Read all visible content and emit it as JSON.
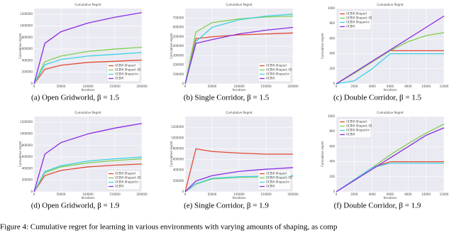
{
  "chart_data": [
    {
      "type": "line",
      "title": "Cumulative Regret",
      "caption": "(a) Open Gridworld, β = 1.5",
      "xlabel": "Iterations",
      "ylabel": "Cumulative regret",
      "legend": "lower right",
      "x": [
        0,
        20000,
        50000,
        100000,
        150000,
        200000
      ],
      "xlim": [
        0,
        200000
      ],
      "xticks": [
        0,
        50000,
        100000,
        150000,
        200000
      ],
      "ylim": [
        0,
        1300000
      ],
      "yticks": [
        0,
        200000,
        400000,
        600000,
        800000,
        1000000,
        1200000
      ],
      "series": [
        {
          "name": "UCBVI-Shaped",
          "color": "#e24a33",
          "values": [
            0,
            250000,
            320000,
            370000,
            390000,
            410000
          ]
        },
        {
          "name": "UCBVI-Shaped-.05",
          "color": "#7fcf4f",
          "values": [
            0,
            380000,
            480000,
            560000,
            600000,
            630000
          ]
        },
        {
          "name": "UCBVI-Shaped-π",
          "color": "#3ed3e0",
          "values": [
            0,
            330000,
            420000,
            480000,
            510000,
            540000
          ]
        },
        {
          "name": "UCBVI",
          "color": "#8a2be2",
          "values": [
            0,
            700000,
            900000,
            1050000,
            1150000,
            1230000
          ]
        }
      ]
    },
    {
      "type": "line",
      "title": "Cumulative Regret",
      "caption": "(b) Single Corridor, β = 1.5",
      "xlabel": "Iterations",
      "ylabel": "Cumulative regret",
      "legend": "lower right",
      "x": [
        0,
        20000,
        50000,
        100000,
        150000,
        200000
      ],
      "xlim": [
        0,
        200000
      ],
      "xticks": [
        0,
        50000,
        100000,
        150000,
        200000
      ],
      "ylim": [
        0,
        800000
      ],
      "yticks": [
        0,
        100000,
        200000,
        300000,
        400000,
        500000,
        600000,
        700000
      ],
      "series": [
        {
          "name": "UCBVI-Shaped",
          "color": "#e24a33",
          "values": [
            0,
            480000,
            500000,
            520000,
            530000,
            540000
          ]
        },
        {
          "name": "UCBVI-Shaped-.05",
          "color": "#7fcf4f",
          "values": [
            0,
            550000,
            650000,
            690000,
            710000,
            720000
          ]
        },
        {
          "name": "UCBVI-Shaped-π",
          "color": "#3ed3e0",
          "values": [
            0,
            450000,
            600000,
            680000,
            720000,
            740000
          ]
        },
        {
          "name": "UCBVI",
          "color": "#8a2be2",
          "values": [
            0,
            430000,
            470000,
            530000,
            570000,
            600000
          ]
        }
      ]
    },
    {
      "type": "line",
      "title": "Cumulative Regret",
      "caption": "(c) Double Corridor, β = 1.5",
      "xlabel": "Iterations",
      "ylabel": "Cumulative regret",
      "legend": "upper left",
      "x": [
        0,
        2000,
        4000,
        6000,
        8000,
        10000,
        12000
      ],
      "xlim": [
        0,
        12000
      ],
      "xticks": [
        0,
        2000,
        4000,
        6000,
        8000,
        10000,
        12000
      ],
      "ylim": [
        0,
        1000
      ],
      "yticks": [
        0,
        200,
        400,
        600,
        800,
        1000
      ],
      "series": [
        {
          "name": "UCBVI-Shaped",
          "color": "#e24a33",
          "values": [
            0,
            140,
            290,
            440,
            440,
            440,
            440
          ]
        },
        {
          "name": "UCBVI-Shaped-.05",
          "color": "#7fcf4f",
          "values": [
            0,
            140,
            290,
            440,
            560,
            640,
            680
          ]
        },
        {
          "name": "UCBVI-Shaped-π",
          "color": "#3ed3e0",
          "values": [
            0,
            40,
            200,
            400,
            400,
            400,
            400
          ]
        },
        {
          "name": "UCBVI",
          "color": "#8a2be2",
          "values": [
            0,
            150,
            300,
            450,
            600,
            750,
            900
          ]
        }
      ]
    },
    {
      "type": "line",
      "title": "Cumulative Regret",
      "caption": "(d) Open Gridworld, β = 1.9",
      "xlabel": "Iterations",
      "ylabel": "Cumulative regret",
      "legend": "lower right",
      "x": [
        0,
        20000,
        50000,
        100000,
        150000,
        200000
      ],
      "xlim": [
        0,
        200000
      ],
      "xticks": [
        0,
        50000,
        100000,
        150000,
        200000
      ],
      "ylim": [
        0,
        1300000
      ],
      "yticks": [
        0,
        200000,
        400000,
        600000,
        800000,
        1000000,
        1200000
      ],
      "series": [
        {
          "name": "UCBVI-Shaped",
          "color": "#e24a33",
          "values": [
            0,
            280000,
            370000,
            430000,
            460000,
            480000
          ]
        },
        {
          "name": "UCBVI-Shaped-.05",
          "color": "#7fcf4f",
          "values": [
            0,
            330000,
            430000,
            500000,
            540000,
            570000
          ]
        },
        {
          "name": "UCBVI-Shaped-π",
          "color": "#3ed3e0",
          "values": [
            0,
            350000,
            450000,
            530000,
            570000,
            600000
          ]
        },
        {
          "name": "UCBVI",
          "color": "#8a2be2",
          "values": [
            0,
            650000,
            850000,
            1000000,
            1100000,
            1180000
          ]
        }
      ]
    },
    {
      "type": "line",
      "title": "Cumulative Regret",
      "caption": "(e) Single Corridor, β = 1.9",
      "xlabel": "Iterations",
      "ylabel": "Cumulative regret",
      "legend": "lower right",
      "x": [
        0,
        20000,
        50000,
        100000,
        150000,
        200000
      ],
      "xlim": [
        0,
        200000
      ],
      "xticks": [
        0,
        50000,
        100000,
        150000,
        200000
      ],
      "ylim": [
        0,
        1400000
      ],
      "yticks": [
        0,
        200000,
        400000,
        600000,
        800000,
        1000000,
        1200000
      ],
      "series": [
        {
          "name": "UCBVI-Shaped",
          "color": "#e24a33",
          "values": [
            0,
            800000,
            750000,
            720000,
            700000,
            700000
          ]
        },
        {
          "name": "UCBVI-Shaped-.05",
          "color": "#7fcf4f",
          "values": [
            0,
            140000,
            240000,
            270000,
            280000,
            290000
          ]
        },
        {
          "name": "UCBVI-Shaped-π",
          "color": "#3ed3e0",
          "values": [
            0,
            150000,
            250000,
            280000,
            290000,
            300000
          ]
        },
        {
          "name": "UCBVI",
          "color": "#8a2be2",
          "values": [
            0,
            200000,
            300000,
            380000,
            420000,
            450000
          ]
        }
      ]
    },
    {
      "type": "line",
      "title": "Cumulative Regret",
      "caption": "(f) Double Corridor, β = 1.9",
      "xlabel": "Iterations",
      "ylabel": "Cumulative regret",
      "legend": "upper left",
      "x": [
        0,
        2000,
        4000,
        6000,
        8000,
        10000,
        12000
      ],
      "xlim": [
        0,
        12000
      ],
      "xticks": [
        0,
        2000,
        4000,
        6000,
        8000,
        10000,
        12000
      ],
      "ylim": [
        0,
        1000
      ],
      "yticks": [
        0,
        200,
        400,
        600,
        800,
        1000
      ],
      "series": [
        {
          "name": "UCBVI-Shaped",
          "color": "#e24a33",
          "values": [
            0,
            160,
            320,
            400,
            400,
            400,
            400
          ]
        },
        {
          "name": "UCBVI-Shaped-.05",
          "color": "#7fcf4f",
          "values": [
            0,
            160,
            320,
            490,
            640,
            780,
            900
          ]
        },
        {
          "name": "UCBVI-Shaped-π",
          "color": "#3ed3e0",
          "values": [
            0,
            160,
            320,
            380,
            380,
            380,
            380
          ]
        },
        {
          "name": "UCBVI",
          "color": "#8a2be2",
          "values": [
            0,
            150,
            300,
            450,
            600,
            750,
            850
          ]
        }
      ]
    }
  ],
  "figure_caption": "Figure 4: Cumulative regret for learning in various environments with varying amounts of shaping, as comp"
}
